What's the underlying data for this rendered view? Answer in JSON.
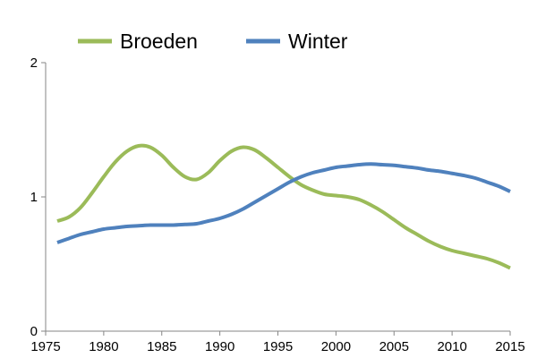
{
  "chart_data": {
    "type": "line",
    "title": "",
    "xlabel": "",
    "ylabel": "",
    "xlim": [
      1975,
      2015
    ],
    "ylim": [
      0,
      2
    ],
    "x_ticks": [
      1975,
      1980,
      1985,
      1990,
      1995,
      2000,
      2005,
      2010,
      2015
    ],
    "y_ticks": [
      0,
      1,
      2
    ],
    "grid": false,
    "legend_position": "top",
    "series": [
      {
        "name": "Broeden",
        "color": "#9bbb59",
        "x": [
          1976,
          1977,
          1978,
          1979,
          1980,
          1981,
          1982,
          1983,
          1984,
          1985,
          1986,
          1987,
          1988,
          1989,
          1990,
          1991,
          1992,
          1993,
          1994,
          1995,
          1996,
          1997,
          1998,
          1999,
          2000,
          2001,
          2002,
          2003,
          2004,
          2005,
          2006,
          2007,
          2008,
          2009,
          2010,
          2011,
          2012,
          2013,
          2014,
          2015
        ],
        "values": [
          0.82,
          0.85,
          0.92,
          1.03,
          1.15,
          1.26,
          1.34,
          1.38,
          1.37,
          1.31,
          1.22,
          1.15,
          1.13,
          1.18,
          1.27,
          1.34,
          1.37,
          1.35,
          1.29,
          1.22,
          1.15,
          1.09,
          1.05,
          1.02,
          1.01,
          1.0,
          0.98,
          0.94,
          0.89,
          0.83,
          0.77,
          0.72,
          0.67,
          0.63,
          0.6,
          0.58,
          0.56,
          0.54,
          0.51,
          0.47
        ]
      },
      {
        "name": "Winter",
        "color": "#4f81bd",
        "x": [
          1976,
          1977,
          1978,
          1979,
          1980,
          1981,
          1982,
          1983,
          1984,
          1985,
          1986,
          1987,
          1988,
          1989,
          1990,
          1991,
          1992,
          1993,
          1994,
          1995,
          1996,
          1997,
          1998,
          1999,
          2000,
          2001,
          2002,
          2003,
          2004,
          2005,
          2006,
          2007,
          2008,
          2009,
          2010,
          2011,
          2012,
          2013,
          2014,
          2015
        ],
        "values": [
          0.66,
          0.69,
          0.72,
          0.74,
          0.76,
          0.77,
          0.78,
          0.785,
          0.79,
          0.79,
          0.79,
          0.795,
          0.8,
          0.82,
          0.84,
          0.87,
          0.91,
          0.96,
          1.01,
          1.06,
          1.11,
          1.15,
          1.18,
          1.2,
          1.22,
          1.23,
          1.24,
          1.245,
          1.24,
          1.235,
          1.225,
          1.215,
          1.2,
          1.19,
          1.175,
          1.16,
          1.14,
          1.11,
          1.08,
          1.04
        ]
      }
    ]
  }
}
